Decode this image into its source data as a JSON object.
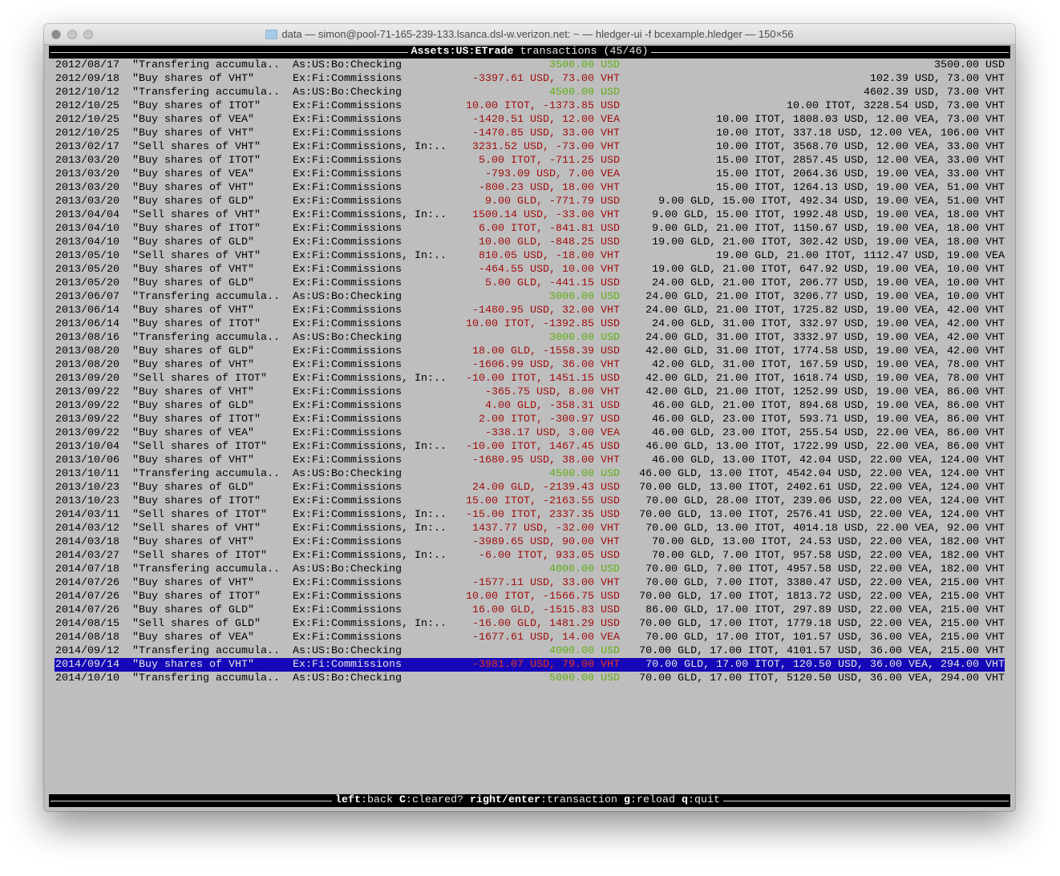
{
  "window": {
    "title": "data — simon@pool-71-165-239-133.lsanca.dsl-w.verizon.net: ~ — hledger-ui -f bcexample.hledger — 150×56"
  },
  "header": {
    "account": "Assets:US:ETrade",
    "label": " transactions (45/46)"
  },
  "colors": {
    "positive": "#5fae12",
    "negative": "#a10d0d",
    "selection": "#1608b8",
    "background": "#bebebe"
  },
  "selected_index": 44,
  "rows": [
    {
      "date": "2012/08/17",
      "desc": "\"Transfering accumula..",
      "account": "As:US:Bo:Checking",
      "amount": "3500.00 USD",
      "balance": "3500.00 USD",
      "sign": "pos"
    },
    {
      "date": "2012/09/18",
      "desc": "\"Buy shares of VHT\"",
      "account": "Ex:Fi:Commissions",
      "amount": "-3397.61 USD, 73.00 VHT",
      "balance": "102.39 USD, 73.00 VHT",
      "sign": "neg"
    },
    {
      "date": "2012/10/12",
      "desc": "\"Transfering accumula..",
      "account": "As:US:Bo:Checking",
      "amount": "4500.00 USD",
      "balance": "4602.39 USD, 73.00 VHT",
      "sign": "pos"
    },
    {
      "date": "2012/10/25",
      "desc": "\"Buy shares of ITOT\"",
      "account": "Ex:Fi:Commissions",
      "amount": "10.00 ITOT, -1373.85 USD",
      "balance": "10.00 ITOT, 3228.54 USD, 73.00 VHT",
      "sign": "neg"
    },
    {
      "date": "2012/10/25",
      "desc": "\"Buy shares of VEA\"",
      "account": "Ex:Fi:Commissions",
      "amount": "-1420.51 USD, 12.00 VEA",
      "balance": "10.00 ITOT, 1808.03 USD, 12.00 VEA, 73.00 VHT",
      "sign": "neg"
    },
    {
      "date": "2012/10/25",
      "desc": "\"Buy shares of VHT\"",
      "account": "Ex:Fi:Commissions",
      "amount": "-1470.85 USD, 33.00 VHT",
      "balance": "10.00 ITOT, 337.18 USD, 12.00 VEA, 106.00 VHT",
      "sign": "neg"
    },
    {
      "date": "2013/02/17",
      "desc": "\"Sell shares of VHT\"",
      "account": "Ex:Fi:Commissions, In:..",
      "amount": "3231.52 USD, -73.00 VHT",
      "balance": "10.00 ITOT, 3568.70 USD, 12.00 VEA, 33.00 VHT",
      "sign": "neg"
    },
    {
      "date": "2013/03/20",
      "desc": "\"Buy shares of ITOT\"",
      "account": "Ex:Fi:Commissions",
      "amount": "5.00 ITOT, -711.25 USD",
      "balance": "15.00 ITOT, 2857.45 USD, 12.00 VEA, 33.00 VHT",
      "sign": "neg"
    },
    {
      "date": "2013/03/20",
      "desc": "\"Buy shares of VEA\"",
      "account": "Ex:Fi:Commissions",
      "amount": "-793.09 USD, 7.00 VEA",
      "balance": "15.00 ITOT, 2064.36 USD, 19.00 VEA, 33.00 VHT",
      "sign": "neg"
    },
    {
      "date": "2013/03/20",
      "desc": "\"Buy shares of VHT\"",
      "account": "Ex:Fi:Commissions",
      "amount": "-800.23 USD, 18.00 VHT",
      "balance": "15.00 ITOT, 1264.13 USD, 19.00 VEA, 51.00 VHT",
      "sign": "neg"
    },
    {
      "date": "2013/03/20",
      "desc": "\"Buy shares of GLD\"",
      "account": "Ex:Fi:Commissions",
      "amount": "9.00 GLD, -771.79 USD",
      "balance": "9.00 GLD, 15.00 ITOT, 492.34 USD, 19.00 VEA, 51.00 VHT",
      "sign": "neg"
    },
    {
      "date": "2013/04/04",
      "desc": "\"Sell shares of VHT\"",
      "account": "Ex:Fi:Commissions, In:..",
      "amount": "1500.14 USD, -33.00 VHT",
      "balance": "9.00 GLD, 15.00 ITOT, 1992.48 USD, 19.00 VEA, 18.00 VHT",
      "sign": "neg"
    },
    {
      "date": "2013/04/10",
      "desc": "\"Buy shares of ITOT\"",
      "account": "Ex:Fi:Commissions",
      "amount": "6.00 ITOT, -841.81 USD",
      "balance": "9.00 GLD, 21.00 ITOT, 1150.67 USD, 19.00 VEA, 18.00 VHT",
      "sign": "neg"
    },
    {
      "date": "2013/04/10",
      "desc": "\"Buy shares of GLD\"",
      "account": "Ex:Fi:Commissions",
      "amount": "10.00 GLD, -848.25 USD",
      "balance": "19.00 GLD, 21.00 ITOT, 302.42 USD, 19.00 VEA, 18.00 VHT",
      "sign": "neg"
    },
    {
      "date": "2013/05/10",
      "desc": "\"Sell shares of VHT\"",
      "account": "Ex:Fi:Commissions, In:..",
      "amount": "810.05 USD, -18.00 VHT",
      "balance": "19.00 GLD, 21.00 ITOT, 1112.47 USD, 19.00 VEA",
      "sign": "neg"
    },
    {
      "date": "2013/05/20",
      "desc": "\"Buy shares of VHT\"",
      "account": "Ex:Fi:Commissions",
      "amount": "-464.55 USD, 10.00 VHT",
      "balance": "19.00 GLD, 21.00 ITOT, 647.92 USD, 19.00 VEA, 10.00 VHT",
      "sign": "neg"
    },
    {
      "date": "2013/05/20",
      "desc": "\"Buy shares of GLD\"",
      "account": "Ex:Fi:Commissions",
      "amount": "5.00 GLD, -441.15 USD",
      "balance": "24.00 GLD, 21.00 ITOT, 206.77 USD, 19.00 VEA, 10.00 VHT",
      "sign": "neg"
    },
    {
      "date": "2013/06/07",
      "desc": "\"Transfering accumula..",
      "account": "As:US:Bo:Checking",
      "amount": "3000.00 USD",
      "balance": "24.00 GLD, 21.00 ITOT, 3206.77 USD, 19.00 VEA, 10.00 VHT",
      "sign": "pos"
    },
    {
      "date": "2013/06/14",
      "desc": "\"Buy shares of VHT\"",
      "account": "Ex:Fi:Commissions",
      "amount": "-1480.95 USD, 32.00 VHT",
      "balance": "24.00 GLD, 21.00 ITOT, 1725.82 USD, 19.00 VEA, 42.00 VHT",
      "sign": "neg"
    },
    {
      "date": "2013/06/14",
      "desc": "\"Buy shares of ITOT\"",
      "account": "Ex:Fi:Commissions",
      "amount": "10.00 ITOT, -1392.85 USD",
      "balance": "24.00 GLD, 31.00 ITOT, 332.97 USD, 19.00 VEA, 42.00 VHT",
      "sign": "neg"
    },
    {
      "date": "2013/08/16",
      "desc": "\"Transfering accumula..",
      "account": "As:US:Bo:Checking",
      "amount": "3000.00 USD",
      "balance": "24.00 GLD, 31.00 ITOT, 3332.97 USD, 19.00 VEA, 42.00 VHT",
      "sign": "pos"
    },
    {
      "date": "2013/08/20",
      "desc": "\"Buy shares of GLD\"",
      "account": "Ex:Fi:Commissions",
      "amount": "18.00 GLD, -1558.39 USD",
      "balance": "42.00 GLD, 31.00 ITOT, 1774.58 USD, 19.00 VEA, 42.00 VHT",
      "sign": "neg"
    },
    {
      "date": "2013/08/20",
      "desc": "\"Buy shares of VHT\"",
      "account": "Ex:Fi:Commissions",
      "amount": "-1606.99 USD, 36.00 VHT",
      "balance": "42.00 GLD, 31.00 ITOT, 167.59 USD, 19.00 VEA, 78.00 VHT",
      "sign": "neg"
    },
    {
      "date": "2013/09/20",
      "desc": "\"Sell shares of ITOT\"",
      "account": "Ex:Fi:Commissions, In:..",
      "amount": "-10.00 ITOT, 1451.15 USD",
      "balance": "42.00 GLD, 21.00 ITOT, 1618.74 USD, 19.00 VEA, 78.00 VHT",
      "sign": "neg"
    },
    {
      "date": "2013/09/22",
      "desc": "\"Buy shares of VHT\"",
      "account": "Ex:Fi:Commissions",
      "amount": "-365.75 USD, 8.00 VHT",
      "balance": "42.00 GLD, 21.00 ITOT, 1252.99 USD, 19.00 VEA, 86.00 VHT",
      "sign": "neg"
    },
    {
      "date": "2013/09/22",
      "desc": "\"Buy shares of GLD\"",
      "account": "Ex:Fi:Commissions",
      "amount": "4.00 GLD, -358.31 USD",
      "balance": "46.00 GLD, 21.00 ITOT, 894.68 USD, 19.00 VEA, 86.00 VHT",
      "sign": "neg"
    },
    {
      "date": "2013/09/22",
      "desc": "\"Buy shares of ITOT\"",
      "account": "Ex:Fi:Commissions",
      "amount": "2.00 ITOT, -300.97 USD",
      "balance": "46.00 GLD, 23.00 ITOT, 593.71 USD, 19.00 VEA, 86.00 VHT",
      "sign": "neg"
    },
    {
      "date": "2013/09/22",
      "desc": "\"Buy shares of VEA\"",
      "account": "Ex:Fi:Commissions",
      "amount": "-338.17 USD, 3.00 VEA",
      "balance": "46.00 GLD, 23.00 ITOT, 255.54 USD, 22.00 VEA, 86.00 VHT",
      "sign": "neg"
    },
    {
      "date": "2013/10/04",
      "desc": "\"Sell shares of ITOT\"",
      "account": "Ex:Fi:Commissions, In:..",
      "amount": "-10.00 ITOT, 1467.45 USD",
      "balance": "46.00 GLD, 13.00 ITOT, 1722.99 USD, 22.00 VEA, 86.00 VHT",
      "sign": "neg"
    },
    {
      "date": "2013/10/06",
      "desc": "\"Buy shares of VHT\"",
      "account": "Ex:Fi:Commissions",
      "amount": "-1680.95 USD, 38.00 VHT",
      "balance": "46.00 GLD, 13.00 ITOT, 42.04 USD, 22.00 VEA, 124.00 VHT",
      "sign": "neg"
    },
    {
      "date": "2013/10/11",
      "desc": "\"Transfering accumula..",
      "account": "As:US:Bo:Checking",
      "amount": "4500.00 USD",
      "balance": "46.00 GLD, 13.00 ITOT, 4542.04 USD, 22.00 VEA, 124.00 VHT",
      "sign": "pos"
    },
    {
      "date": "2013/10/23",
      "desc": "\"Buy shares of GLD\"",
      "account": "Ex:Fi:Commissions",
      "amount": "24.00 GLD, -2139.43 USD",
      "balance": "70.00 GLD, 13.00 ITOT, 2402.61 USD, 22.00 VEA, 124.00 VHT",
      "sign": "neg"
    },
    {
      "date": "2013/10/23",
      "desc": "\"Buy shares of ITOT\"",
      "account": "Ex:Fi:Commissions",
      "amount": "15.00 ITOT, -2163.55 USD",
      "balance": "70.00 GLD, 28.00 ITOT, 239.06 USD, 22.00 VEA, 124.00 VHT",
      "sign": "neg"
    },
    {
      "date": "2014/03/11",
      "desc": "\"Sell shares of ITOT\"",
      "account": "Ex:Fi:Commissions, In:..",
      "amount": "-15.00 ITOT, 2337.35 USD",
      "balance": "70.00 GLD, 13.00 ITOT, 2576.41 USD, 22.00 VEA, 124.00 VHT",
      "sign": "neg"
    },
    {
      "date": "2014/03/12",
      "desc": "\"Sell shares of VHT\"",
      "account": "Ex:Fi:Commissions, In:..",
      "amount": "1437.77 USD, -32.00 VHT",
      "balance": "70.00 GLD, 13.00 ITOT, 4014.18 USD, 22.00 VEA, 92.00 VHT",
      "sign": "neg"
    },
    {
      "date": "2014/03/18",
      "desc": "\"Buy shares of VHT\"",
      "account": "Ex:Fi:Commissions",
      "amount": "-3989.65 USD, 90.00 VHT",
      "balance": "70.00 GLD, 13.00 ITOT, 24.53 USD, 22.00 VEA, 182.00 VHT",
      "sign": "neg"
    },
    {
      "date": "2014/03/27",
      "desc": "\"Sell shares of ITOT\"",
      "account": "Ex:Fi:Commissions, In:..",
      "amount": "-6.00 ITOT, 933.05 USD",
      "balance": "70.00 GLD, 7.00 ITOT, 957.58 USD, 22.00 VEA, 182.00 VHT",
      "sign": "neg"
    },
    {
      "date": "2014/07/18",
      "desc": "\"Transfering accumula..",
      "account": "As:US:Bo:Checking",
      "amount": "4000.00 USD",
      "balance": "70.00 GLD, 7.00 ITOT, 4957.58 USD, 22.00 VEA, 182.00 VHT",
      "sign": "pos"
    },
    {
      "date": "2014/07/26",
      "desc": "\"Buy shares of VHT\"",
      "account": "Ex:Fi:Commissions",
      "amount": "-1577.11 USD, 33.00 VHT",
      "balance": "70.00 GLD, 7.00 ITOT, 3380.47 USD, 22.00 VEA, 215.00 VHT",
      "sign": "neg"
    },
    {
      "date": "2014/07/26",
      "desc": "\"Buy shares of ITOT\"",
      "account": "Ex:Fi:Commissions",
      "amount": "10.00 ITOT, -1566.75 USD",
      "balance": "70.00 GLD, 17.00 ITOT, 1813.72 USD, 22.00 VEA, 215.00 VHT",
      "sign": "neg"
    },
    {
      "date": "2014/07/26",
      "desc": "\"Buy shares of GLD\"",
      "account": "Ex:Fi:Commissions",
      "amount": "16.00 GLD, -1515.83 USD",
      "balance": "86.00 GLD, 17.00 ITOT, 297.89 USD, 22.00 VEA, 215.00 VHT",
      "sign": "neg"
    },
    {
      "date": "2014/08/15",
      "desc": "\"Sell shares of GLD\"",
      "account": "Ex:Fi:Commissions, In:..",
      "amount": "-16.00 GLD, 1481.29 USD",
      "balance": "70.00 GLD, 17.00 ITOT, 1779.18 USD, 22.00 VEA, 215.00 VHT",
      "sign": "neg"
    },
    {
      "date": "2014/08/18",
      "desc": "\"Buy shares of VEA\"",
      "account": "Ex:Fi:Commissions",
      "amount": "-1677.61 USD, 14.00 VEA",
      "balance": "70.00 GLD, 17.00 ITOT, 101.57 USD, 36.00 VEA, 215.00 VHT",
      "sign": "neg"
    },
    {
      "date": "2014/09/12",
      "desc": "\"Transfering accumula..",
      "account": "As:US:Bo:Checking",
      "amount": "4000.00 USD",
      "balance": "70.00 GLD, 17.00 ITOT, 4101.57 USD, 36.00 VEA, 215.00 VHT",
      "sign": "pos"
    },
    {
      "date": "2014/09/14",
      "desc": "\"Buy shares of VHT\"",
      "account": "Ex:Fi:Commissions",
      "amount": "-3981.07 USD, 79.00 VHT",
      "balance": "70.00 GLD, 17.00 ITOT, 120.50 USD, 36.00 VEA, 294.00 VHT",
      "sign": "neg"
    },
    {
      "date": "2014/10/10",
      "desc": "\"Transfering accumula..",
      "account": "As:US:Bo:Checking",
      "amount": "5000.00 USD",
      "balance": "70.00 GLD, 17.00 ITOT, 5120.50 USD, 36.00 VEA, 294.00 VHT",
      "sign": "pos"
    }
  ],
  "footer": {
    "keys": [
      {
        "key": "left",
        "action": ":back "
      },
      {
        "key": "C",
        "action": ":cleared? "
      },
      {
        "key": "right/enter",
        "action": ":transaction "
      },
      {
        "key": "g",
        "action": ":reload "
      },
      {
        "key": "q",
        "action": ":quit"
      }
    ]
  }
}
